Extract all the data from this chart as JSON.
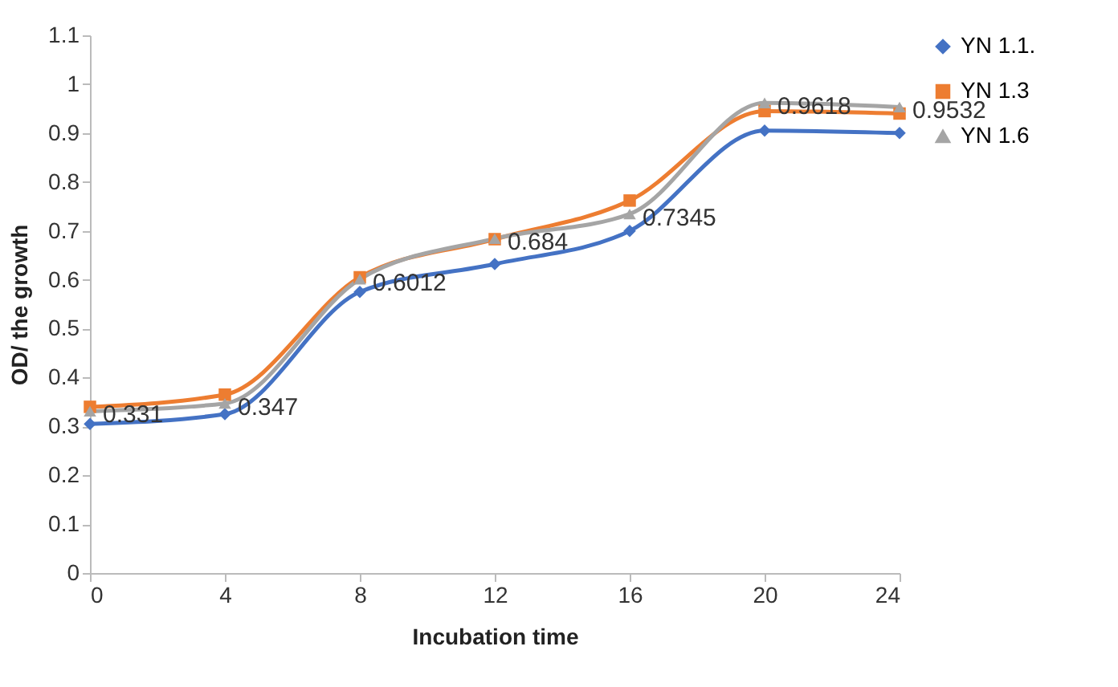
{
  "chart_data": {
    "type": "line",
    "xlabel": "Incubation time",
    "ylabel": "OD/ the growth",
    "x": [
      0,
      4,
      8,
      12,
      16,
      20,
      24
    ],
    "xlim": [
      0,
      24
    ],
    "xticks": [
      0,
      4,
      8,
      12,
      16,
      20,
      24
    ],
    "ylim": [
      0,
      1.1
    ],
    "yticks": [
      0,
      0.1,
      0.2,
      0.3,
      0.4,
      0.5,
      0.6,
      0.7,
      0.8,
      0.9,
      1,
      1.1
    ],
    "grid": false,
    "legend": "right",
    "series": [
      {
        "name": "YN 1.1.",
        "color": "#4472c4",
        "marker": "diamond",
        "values": [
          0.305,
          0.325,
          0.575,
          0.632,
          0.7,
          0.905,
          0.9
        ]
      },
      {
        "name": "YN 1.3",
        "color": "#ed7d31",
        "marker": "square",
        "values": [
          0.34,
          0.365,
          0.605,
          0.683,
          0.762,
          0.945,
          0.94
        ]
      },
      {
        "name": "YN 1.6",
        "color": "#a5a5a5",
        "marker": "triangle",
        "values": [
          0.331,
          0.347,
          0.6012,
          0.684,
          0.7345,
          0.9618,
          0.9532
        ],
        "value_labels": [
          "0.331",
          "0.347",
          "0.6012",
          "0.684",
          "0.7345",
          "0.9618",
          "0.9532"
        ]
      }
    ]
  }
}
